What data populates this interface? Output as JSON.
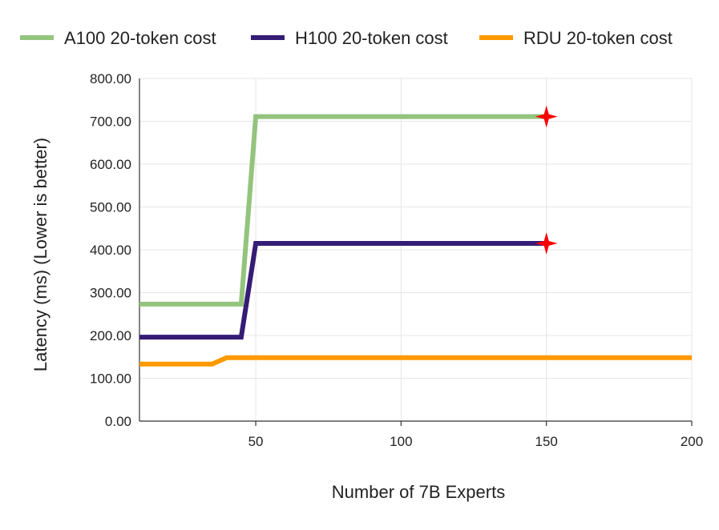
{
  "chart_data": {
    "type": "line",
    "title": "",
    "xlabel": "Number of 7B Experts",
    "ylabel": "Latency  (ms) (Lower is better)",
    "xlim": [
      10,
      200
    ],
    "ylim": [
      0,
      800
    ],
    "xticks": [
      50,
      100,
      150,
      200
    ],
    "xtick_labels": [
      "50",
      "100",
      "150",
      "200"
    ],
    "yticks": [
      0,
      100,
      200,
      300,
      400,
      500,
      600,
      700,
      800
    ],
    "ytick_labels": [
      "0.00",
      "100.00",
      "200.00",
      "300.00",
      "400.00",
      "500.00",
      "600.00",
      "700.00",
      "800.00"
    ],
    "grid": true,
    "legend_position": "top",
    "series": [
      {
        "name": "A100 20-token cost",
        "color": "#93c47d",
        "points": [
          [
            10,
            273
          ],
          [
            45,
            273
          ],
          [
            50,
            711
          ],
          [
            150,
            711
          ]
        ],
        "end_marker": "red-star"
      },
      {
        "name": "H100 20-token cost",
        "color": "#351c75",
        "points": [
          [
            10,
            196
          ],
          [
            45,
            196
          ],
          [
            50,
            415
          ],
          [
            150,
            415
          ]
        ],
        "end_marker": "red-star"
      },
      {
        "name": "RDU 20-token cost",
        "color": "#ff9900",
        "points": [
          [
            10,
            133
          ],
          [
            35,
            133
          ],
          [
            40,
            148
          ],
          [
            200,
            148
          ]
        ],
        "end_marker": ""
      }
    ],
    "marker_color": "#ff0000"
  }
}
